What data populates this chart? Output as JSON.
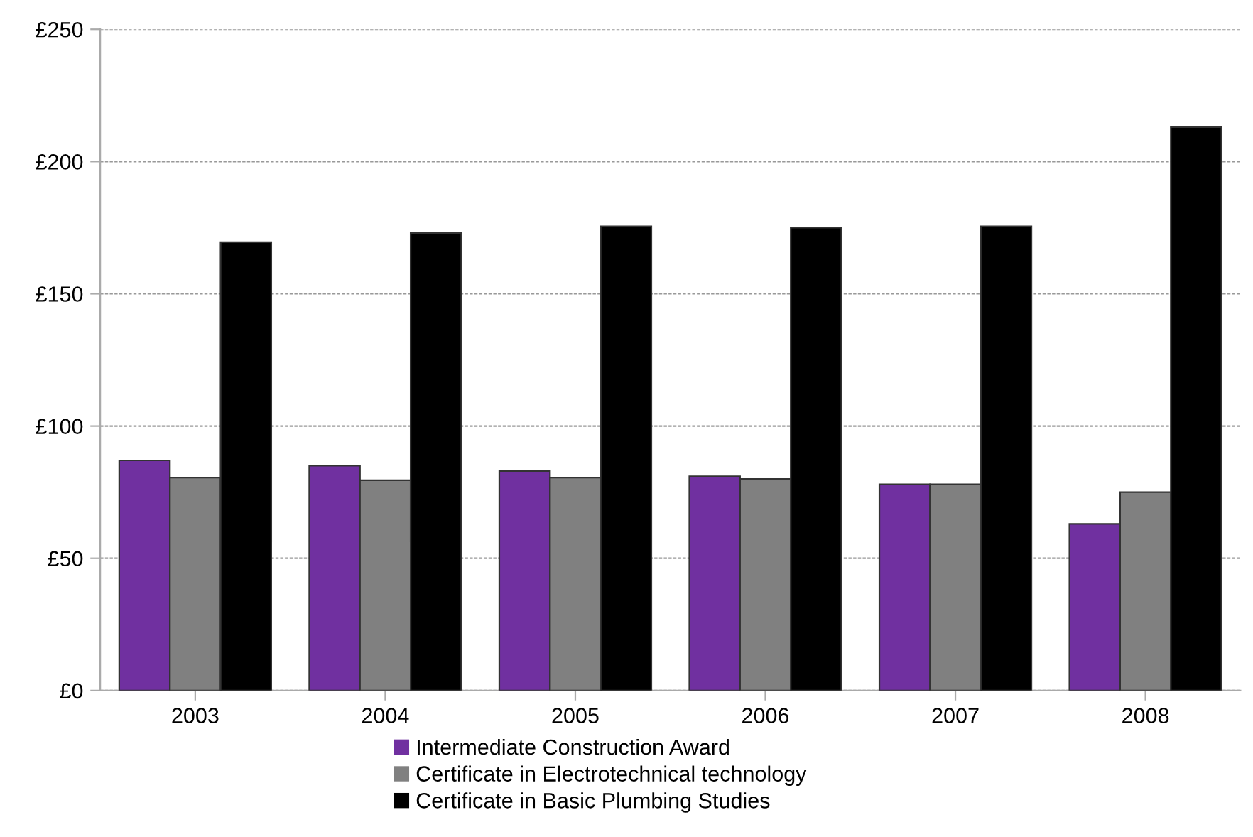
{
  "chart_data": {
    "type": "bar",
    "categories": [
      "2003",
      "2004",
      "2005",
      "2006",
      "2007",
      "2008"
    ],
    "series": [
      {
        "name": "Intermediate Construction Award",
        "color": "#7030a0",
        "values": [
          87,
          85,
          83,
          81,
          78,
          63
        ]
      },
      {
        "name": "Certificate in Electrotechnical technology",
        "color": "#808080",
        "values": [
          80.5,
          79.5,
          80.5,
          80,
          78,
          75
        ]
      },
      {
        "name": "Certificate in Basic Plumbing Studies",
        "color": "#000000",
        "values": [
          169.5,
          173,
          175.5,
          175,
          175.5,
          213
        ]
      }
    ],
    "ylim": [
      0,
      250
    ],
    "yticks": [
      {
        "value": 0,
        "label": "£0"
      },
      {
        "value": 50,
        "label": "£50"
      },
      {
        "value": 100,
        "label": "£100"
      },
      {
        "value": 150,
        "label": "£150"
      },
      {
        "value": 200,
        "label": "£200"
      },
      {
        "value": 250,
        "label": "£250"
      }
    ],
    "grid": "y",
    "legend": "bottom"
  }
}
